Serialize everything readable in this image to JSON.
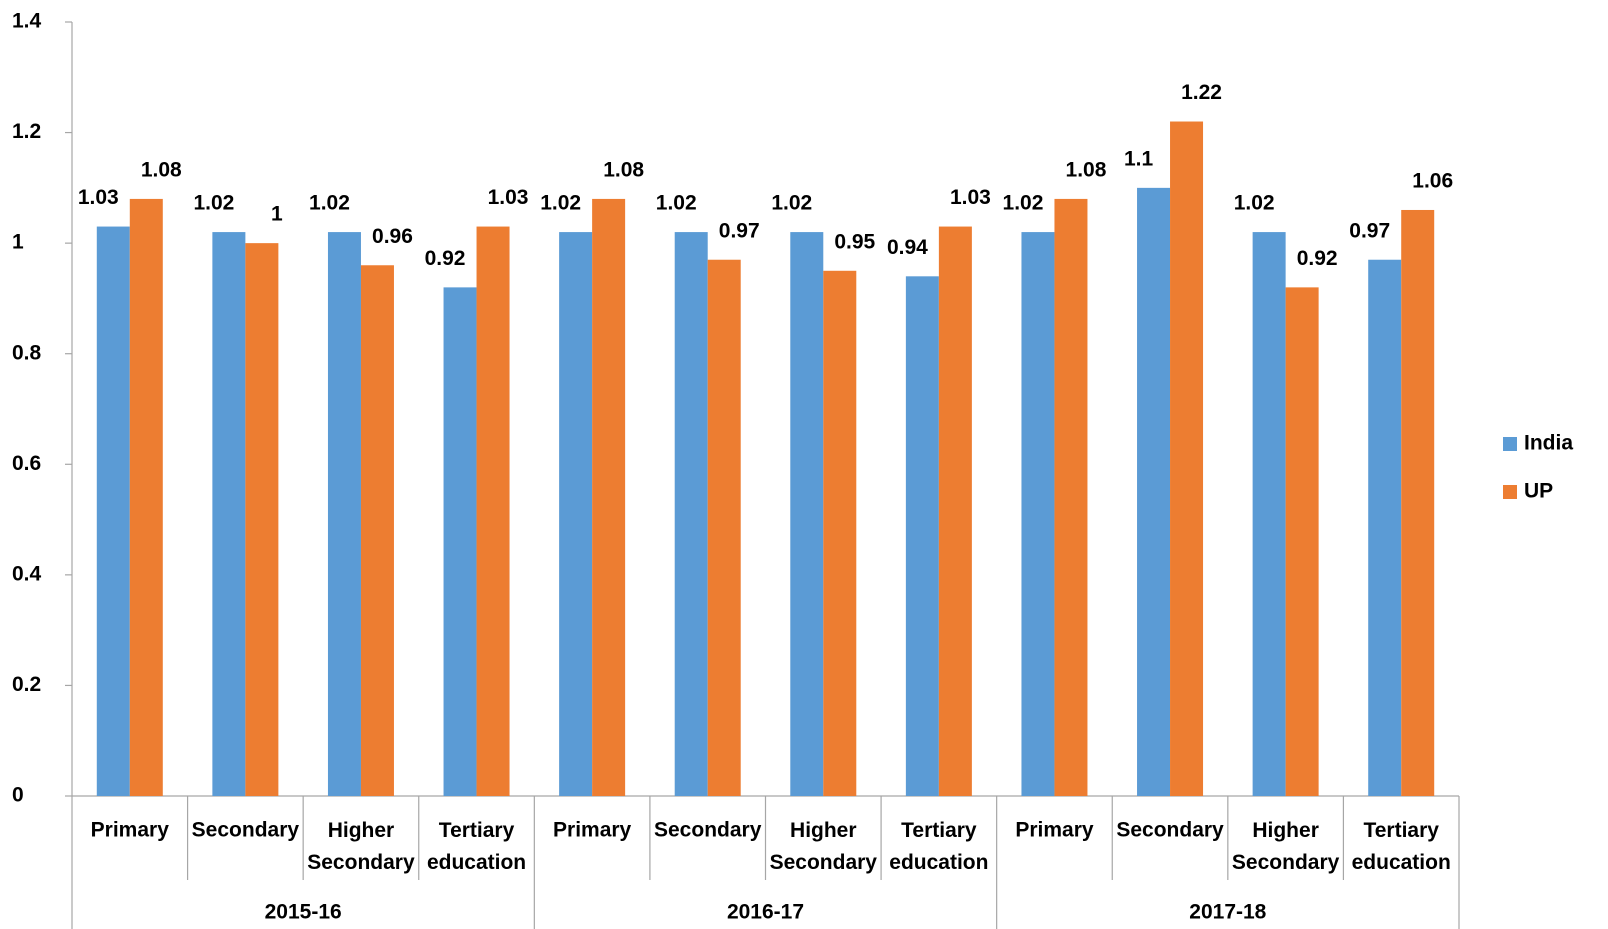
{
  "chart_data": {
    "type": "bar",
    "categories": [
      "Primary",
      "Secondary",
      "Higher Secondary",
      "Tertiary education",
      "Primary",
      "Secondary",
      "Higher Secondary",
      "Tertiary education",
      "Primary",
      "Secondary",
      "Higher Secondary",
      "Tertiary education"
    ],
    "groups": [
      "2015-16",
      "2016-17",
      "2017-18"
    ],
    "series": [
      {
        "name": "India",
        "color": "#5b9bd5",
        "values": [
          1.03,
          1.02,
          1.02,
          0.92,
          1.02,
          1.02,
          1.02,
          0.94,
          1.02,
          1.1,
          1.02,
          0.97
        ]
      },
      {
        "name": "UP",
        "color": "#ed7d31",
        "values": [
          1.08,
          1,
          0.96,
          1.03,
          1.08,
          0.97,
          0.95,
          1.03,
          1.08,
          1.22,
          0.92,
          1.06
        ]
      }
    ],
    "ylim": [
      0,
      1.4
    ],
    "yticks": [
      0,
      0.2,
      0.4,
      0.6,
      0.8,
      1,
      1.2,
      1.4
    ],
    "grid": false,
    "legend": "right"
  }
}
